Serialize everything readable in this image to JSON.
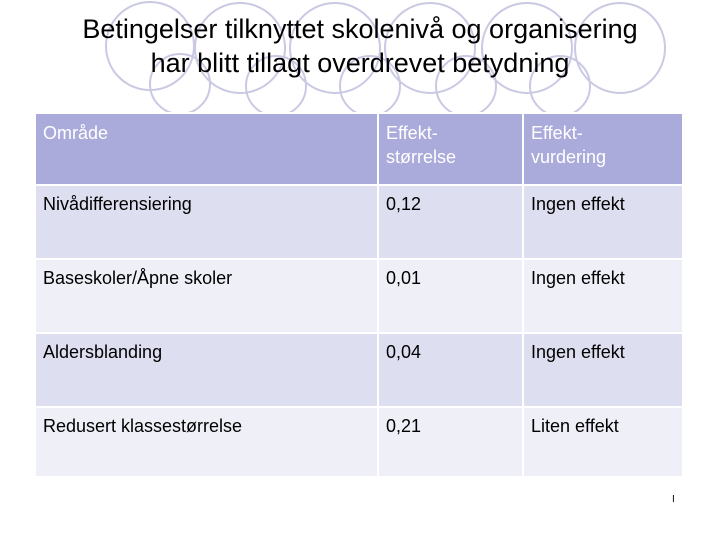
{
  "title": {
    "line1": "Betingelser tilknyttet skolenivå og organisering",
    "line2": "har blitt tillagt overdrevet betydning"
  },
  "table": {
    "headers": [
      "Område",
      "Effekt-\nstørrelse",
      "Effekt-\nvurdering"
    ],
    "rows": [
      [
        "Nivådifferensiering",
        "0,12",
        "Ingen effekt"
      ],
      [
        "Baseskoler/Åpne skoler",
        "0,01",
        "Ingen effekt"
      ],
      [
        "Aldersblanding",
        "0,04",
        "Ingen effekt"
      ],
      [
        "Redusert klassestørrelse",
        "0,21",
        "Liten effekt"
      ]
    ]
  },
  "slide_number": "I",
  "colors": {
    "header_bg": "#ababdb",
    "row_dark": "#dedef1",
    "row_light": "#efeff8",
    "ring": "#c9c9e3"
  }
}
